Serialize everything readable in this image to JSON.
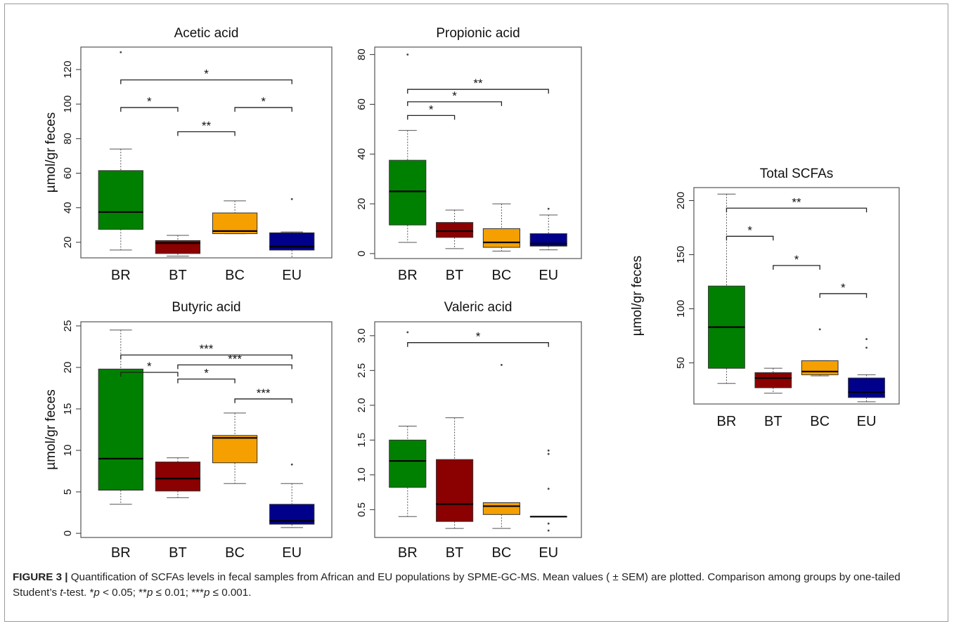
{
  "colors": {
    "BR": "#008000",
    "BT": "#8b0000",
    "BC": "#f5a000",
    "EU": "#00008b"
  },
  "caption": {
    "label": "FIGURE 3 |",
    "segments": [
      {
        "t": " Quantification of SCFAs levels in fecal samples from African and EU populations by SPME-GC-MS. Mean values ( ± SEM) are plotted. Comparison among groups by one-tailed Student’s ",
        "i": false
      },
      {
        "t": "t",
        "i": true
      },
      {
        "t": "-test. *",
        "i": false
      },
      {
        "t": "p",
        "i": true
      },
      {
        "t": " < 0.05; **",
        "i": false
      },
      {
        "t": "p",
        "i": true
      },
      {
        "t": " ≤ 0.01; ***",
        "i": false
      },
      {
        "t": "p",
        "i": true
      },
      {
        "t": " ≤ 0.001.",
        "i": false
      }
    ]
  },
  "chart_data": [
    {
      "id": "acetic",
      "type": "box",
      "title": "Acetic acid",
      "ylabel": "µmol/gr feces",
      "ylim": [
        11,
        133
      ],
      "yticks": [
        20,
        40,
        60,
        80,
        100,
        120
      ],
      "categories": [
        "BR",
        "BT",
        "BC",
        "EU"
      ],
      "boxes": [
        {
          "group": "BR",
          "whisker_low": 15.5,
          "q1": 27.5,
          "median": 37.5,
          "q3": 61.5,
          "whisker_high": 74,
          "outliers": [
            130
          ]
        },
        {
          "group": "BT",
          "whisker_low": 12,
          "q1": 13.5,
          "median": 19.5,
          "q3": 21,
          "whisker_high": 24,
          "outliers": []
        },
        {
          "group": "BC",
          "whisker_low": 25,
          "q1": 25,
          "median": 26.5,
          "q3": 37,
          "whisker_high": 44,
          "outliers": []
        },
        {
          "group": "EU",
          "whisker_low": 11,
          "q1": 15.5,
          "median": 17.5,
          "q3": 25.5,
          "whisker_high": 26,
          "outliers": [
            45
          ]
        }
      ],
      "significance": [
        {
          "from": "BR",
          "to": "EU",
          "y": 114,
          "label": "*"
        },
        {
          "from": "BR",
          "to": "BT",
          "y": 98,
          "label": "*"
        },
        {
          "from": "BC",
          "to": "EU",
          "y": 98,
          "label": "*"
        },
        {
          "from": "BT",
          "to": "BC",
          "y": 84,
          "label": "**"
        }
      ]
    },
    {
      "id": "propionic",
      "type": "box",
      "title": "Propionic acid",
      "ylabel": "",
      "ylim": [
        -2,
        83
      ],
      "yticks": [
        0,
        20,
        40,
        60,
        80
      ],
      "categories": [
        "BR",
        "BT",
        "BC",
        "EU"
      ],
      "boxes": [
        {
          "group": "BR",
          "whisker_low": 4.5,
          "q1": 11.5,
          "median": 25,
          "q3": 37.5,
          "whisker_high": 49.5,
          "outliers": [
            80
          ]
        },
        {
          "group": "BT",
          "whisker_low": 2,
          "q1": 6.5,
          "median": 9,
          "q3": 12.5,
          "whisker_high": 17.5,
          "outliers": []
        },
        {
          "group": "BC",
          "whisker_low": 1,
          "q1": 2.5,
          "median": 4.5,
          "q3": 10,
          "whisker_high": 20,
          "outliers": []
        },
        {
          "group": "EU",
          "whisker_low": 1.5,
          "q1": 3,
          "median": 4,
          "q3": 8,
          "whisker_high": 15.5,
          "outliers": [
            18
          ]
        }
      ],
      "significance": [
        {
          "from": "BR",
          "to": "EU",
          "y": 66,
          "label": "**"
        },
        {
          "from": "BR",
          "to": "BC",
          "y": 61,
          "label": "*"
        },
        {
          "from": "BR",
          "to": "BT",
          "y": 55.5,
          "label": "*"
        }
      ]
    },
    {
      "id": "butyric",
      "type": "box",
      "title": "Butyric acid",
      "ylabel": "µmol/gr feces",
      "ylim": [
        -0.5,
        25.5
      ],
      "yticks": [
        0,
        5,
        10,
        15,
        20,
        25
      ],
      "categories": [
        "BR",
        "BT",
        "BC",
        "EU"
      ],
      "boxes": [
        {
          "group": "BR",
          "whisker_low": 3.5,
          "q1": 5.2,
          "median": 9,
          "q3": 19.8,
          "whisker_high": 24.5,
          "outliers": []
        },
        {
          "group": "BT",
          "whisker_low": 4.3,
          "q1": 5.1,
          "median": 6.6,
          "q3": 8.6,
          "whisker_high": 9.1,
          "outliers": []
        },
        {
          "group": "BC",
          "whisker_low": 6,
          "q1": 8.5,
          "median": 11.5,
          "q3": 11.8,
          "whisker_high": 14.5,
          "outliers": []
        },
        {
          "group": "EU",
          "whisker_low": 0.7,
          "q1": 1.1,
          "median": 1.5,
          "q3": 3.5,
          "whisker_high": 6,
          "outliers": [
            8.3
          ]
        }
      ],
      "significance": [
        {
          "from": "BR",
          "to": "EU",
          "y": 21.5,
          "label": "***"
        },
        {
          "from": "BT",
          "to": "EU",
          "y": 20.3,
          "label": "***"
        },
        {
          "from": "BR",
          "to": "BT",
          "y": 19.4,
          "label": "*"
        },
        {
          "from": "BT",
          "to": "BC",
          "y": 18.6,
          "label": "*"
        },
        {
          "from": "BC",
          "to": "EU",
          "y": 16.2,
          "label": "***"
        }
      ]
    },
    {
      "id": "valeric",
      "type": "box",
      "title": "Valeric acid",
      "ylabel": "",
      "ylim": [
        0.1,
        3.2
      ],
      "yticks": [
        "0.5",
        "1.0",
        "1.5",
        "2.0",
        "2.5",
        "3.0"
      ],
      "categories": [
        "BR",
        "BT",
        "BC",
        "EU"
      ],
      "boxes": [
        {
          "group": "BR",
          "whisker_low": 0.4,
          "q1": 0.82,
          "median": 1.2,
          "q3": 1.5,
          "whisker_high": 1.7,
          "outliers": [
            3.05
          ]
        },
        {
          "group": "BT",
          "whisker_low": 0.23,
          "q1": 0.33,
          "median": 0.58,
          "q3": 1.22,
          "whisker_high": 1.82,
          "outliers": []
        },
        {
          "group": "BC",
          "whisker_low": 0.23,
          "q1": 0.43,
          "median": 0.55,
          "q3": 0.6,
          "whisker_high": 0.6,
          "outliers": [
            2.58
          ]
        },
        {
          "group": "EU",
          "whisker_low": 0.4,
          "q1": 0.4,
          "median": 0.4,
          "q3": 0.4,
          "whisker_high": 0.4,
          "outliers": [
            1.35,
            1.3,
            0.8,
            0.3,
            0.2
          ]
        }
      ],
      "significance": [
        {
          "from": "BR",
          "to": "EU",
          "y": 2.9,
          "label": "*"
        }
      ]
    },
    {
      "id": "total",
      "type": "box",
      "title": "Total SCFAs",
      "ylabel": "µmol/gr feces",
      "ylim": [
        12,
        212
      ],
      "yticks": [
        50,
        100,
        150,
        200
      ],
      "categories": [
        "BR",
        "BT",
        "BC",
        "EU"
      ],
      "boxes": [
        {
          "group": "BR",
          "whisker_low": 31,
          "q1": 45,
          "median": 83,
          "q3": 121,
          "whisker_high": 206,
          "outliers": []
        },
        {
          "group": "BT",
          "whisker_low": 22,
          "q1": 27,
          "median": 36,
          "q3": 41,
          "whisker_high": 45,
          "outliers": []
        },
        {
          "group": "BC",
          "whisker_low": 38,
          "q1": 39,
          "median": 42,
          "q3": 52,
          "whisker_high": 52,
          "outliers": [
            81
          ]
        },
        {
          "group": "EU",
          "whisker_low": 14,
          "q1": 18,
          "median": 23,
          "q3": 36,
          "whisker_high": 39,
          "outliers": [
            72,
            64
          ]
        }
      ],
      "significance": [
        {
          "from": "BR",
          "to": "EU",
          "y": 193,
          "label": "**"
        },
        {
          "from": "BR",
          "to": "BT",
          "y": 167,
          "label": "*"
        },
        {
          "from": "BT",
          "to": "BC",
          "y": 140,
          "label": "*"
        },
        {
          "from": "BC",
          "to": "EU",
          "y": 114,
          "label": "*"
        }
      ]
    }
  ]
}
